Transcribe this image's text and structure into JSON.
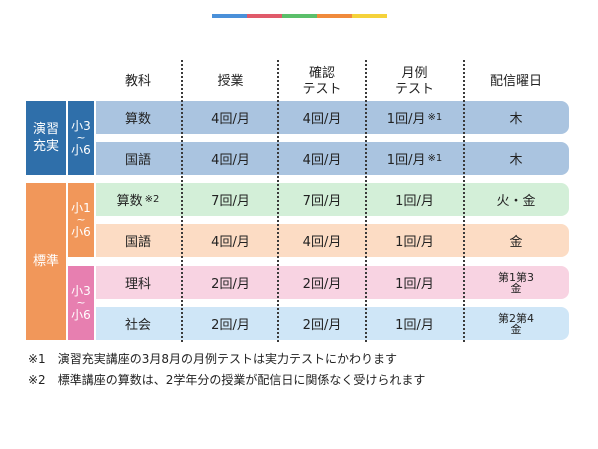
{
  "top_bar_colors": [
    "#4a90d9",
    "#e05a6a",
    "#5bbf6a",
    "#f08a3c",
    "#f5d23a"
  ],
  "headers": [
    "教科",
    "授業",
    "確認\nテスト",
    "月例\nテスト",
    "配信曜日"
  ],
  "groups": [
    {
      "label": "演習\n充実",
      "color": "#2f6faa"
    },
    {
      "label": "標準",
      "color": "#f1975a"
    }
  ],
  "grades": [
    {
      "from": "小3",
      "tilde": "~",
      "to": "小6",
      "color": "#2f6faa"
    },
    {
      "from": "小1",
      "tilde": "~",
      "to": "小6",
      "color": "#f1975a"
    },
    {
      "from": "小3",
      "tilde": "~",
      "to": "小6",
      "color": "#e77fb0"
    }
  ],
  "rows": [
    {
      "subject": "算数",
      "subject_mark": "",
      "class": "4回/月",
      "check": "4回/月",
      "monthly": "1回/月",
      "monthly_mark": "※1",
      "day": "木",
      "day_line2": "",
      "color": "#aac4e0"
    },
    {
      "subject": "国語",
      "subject_mark": "",
      "class": "4回/月",
      "check": "4回/月",
      "monthly": "1回/月",
      "monthly_mark": "※1",
      "day": "木",
      "day_line2": "",
      "color": "#aac4e0"
    },
    {
      "subject": "算数",
      "subject_mark": "※2",
      "class": "7回/月",
      "check": "7回/月",
      "monthly": "1回/月",
      "monthly_mark": "",
      "day": "火・金",
      "day_line2": "",
      "color": "#d3efd8"
    },
    {
      "subject": "国語",
      "subject_mark": "",
      "class": "4回/月",
      "check": "4回/月",
      "monthly": "1回/月",
      "monthly_mark": "",
      "day": "金",
      "day_line2": "",
      "color": "#fcdcc4"
    },
    {
      "subject": "理科",
      "subject_mark": "",
      "class": "2回/月",
      "check": "2回/月",
      "monthly": "1回/月",
      "monthly_mark": "",
      "day": "第1第3",
      "day_line2": "金",
      "color": "#f8d3e2"
    },
    {
      "subject": "社会",
      "subject_mark": "",
      "class": "2回/月",
      "check": "2回/月",
      "monthly": "1回/月",
      "monthly_mark": "",
      "day": "第2第4",
      "day_line2": "金",
      "color": "#cfe6f7"
    }
  ],
  "notes": [
    "※1　演習充実講座の3月8月の月例テストは実力テストにかわります",
    "※2　標準講座の算数は、2学年分の授業が配信日に関係なく受けられます"
  ]
}
